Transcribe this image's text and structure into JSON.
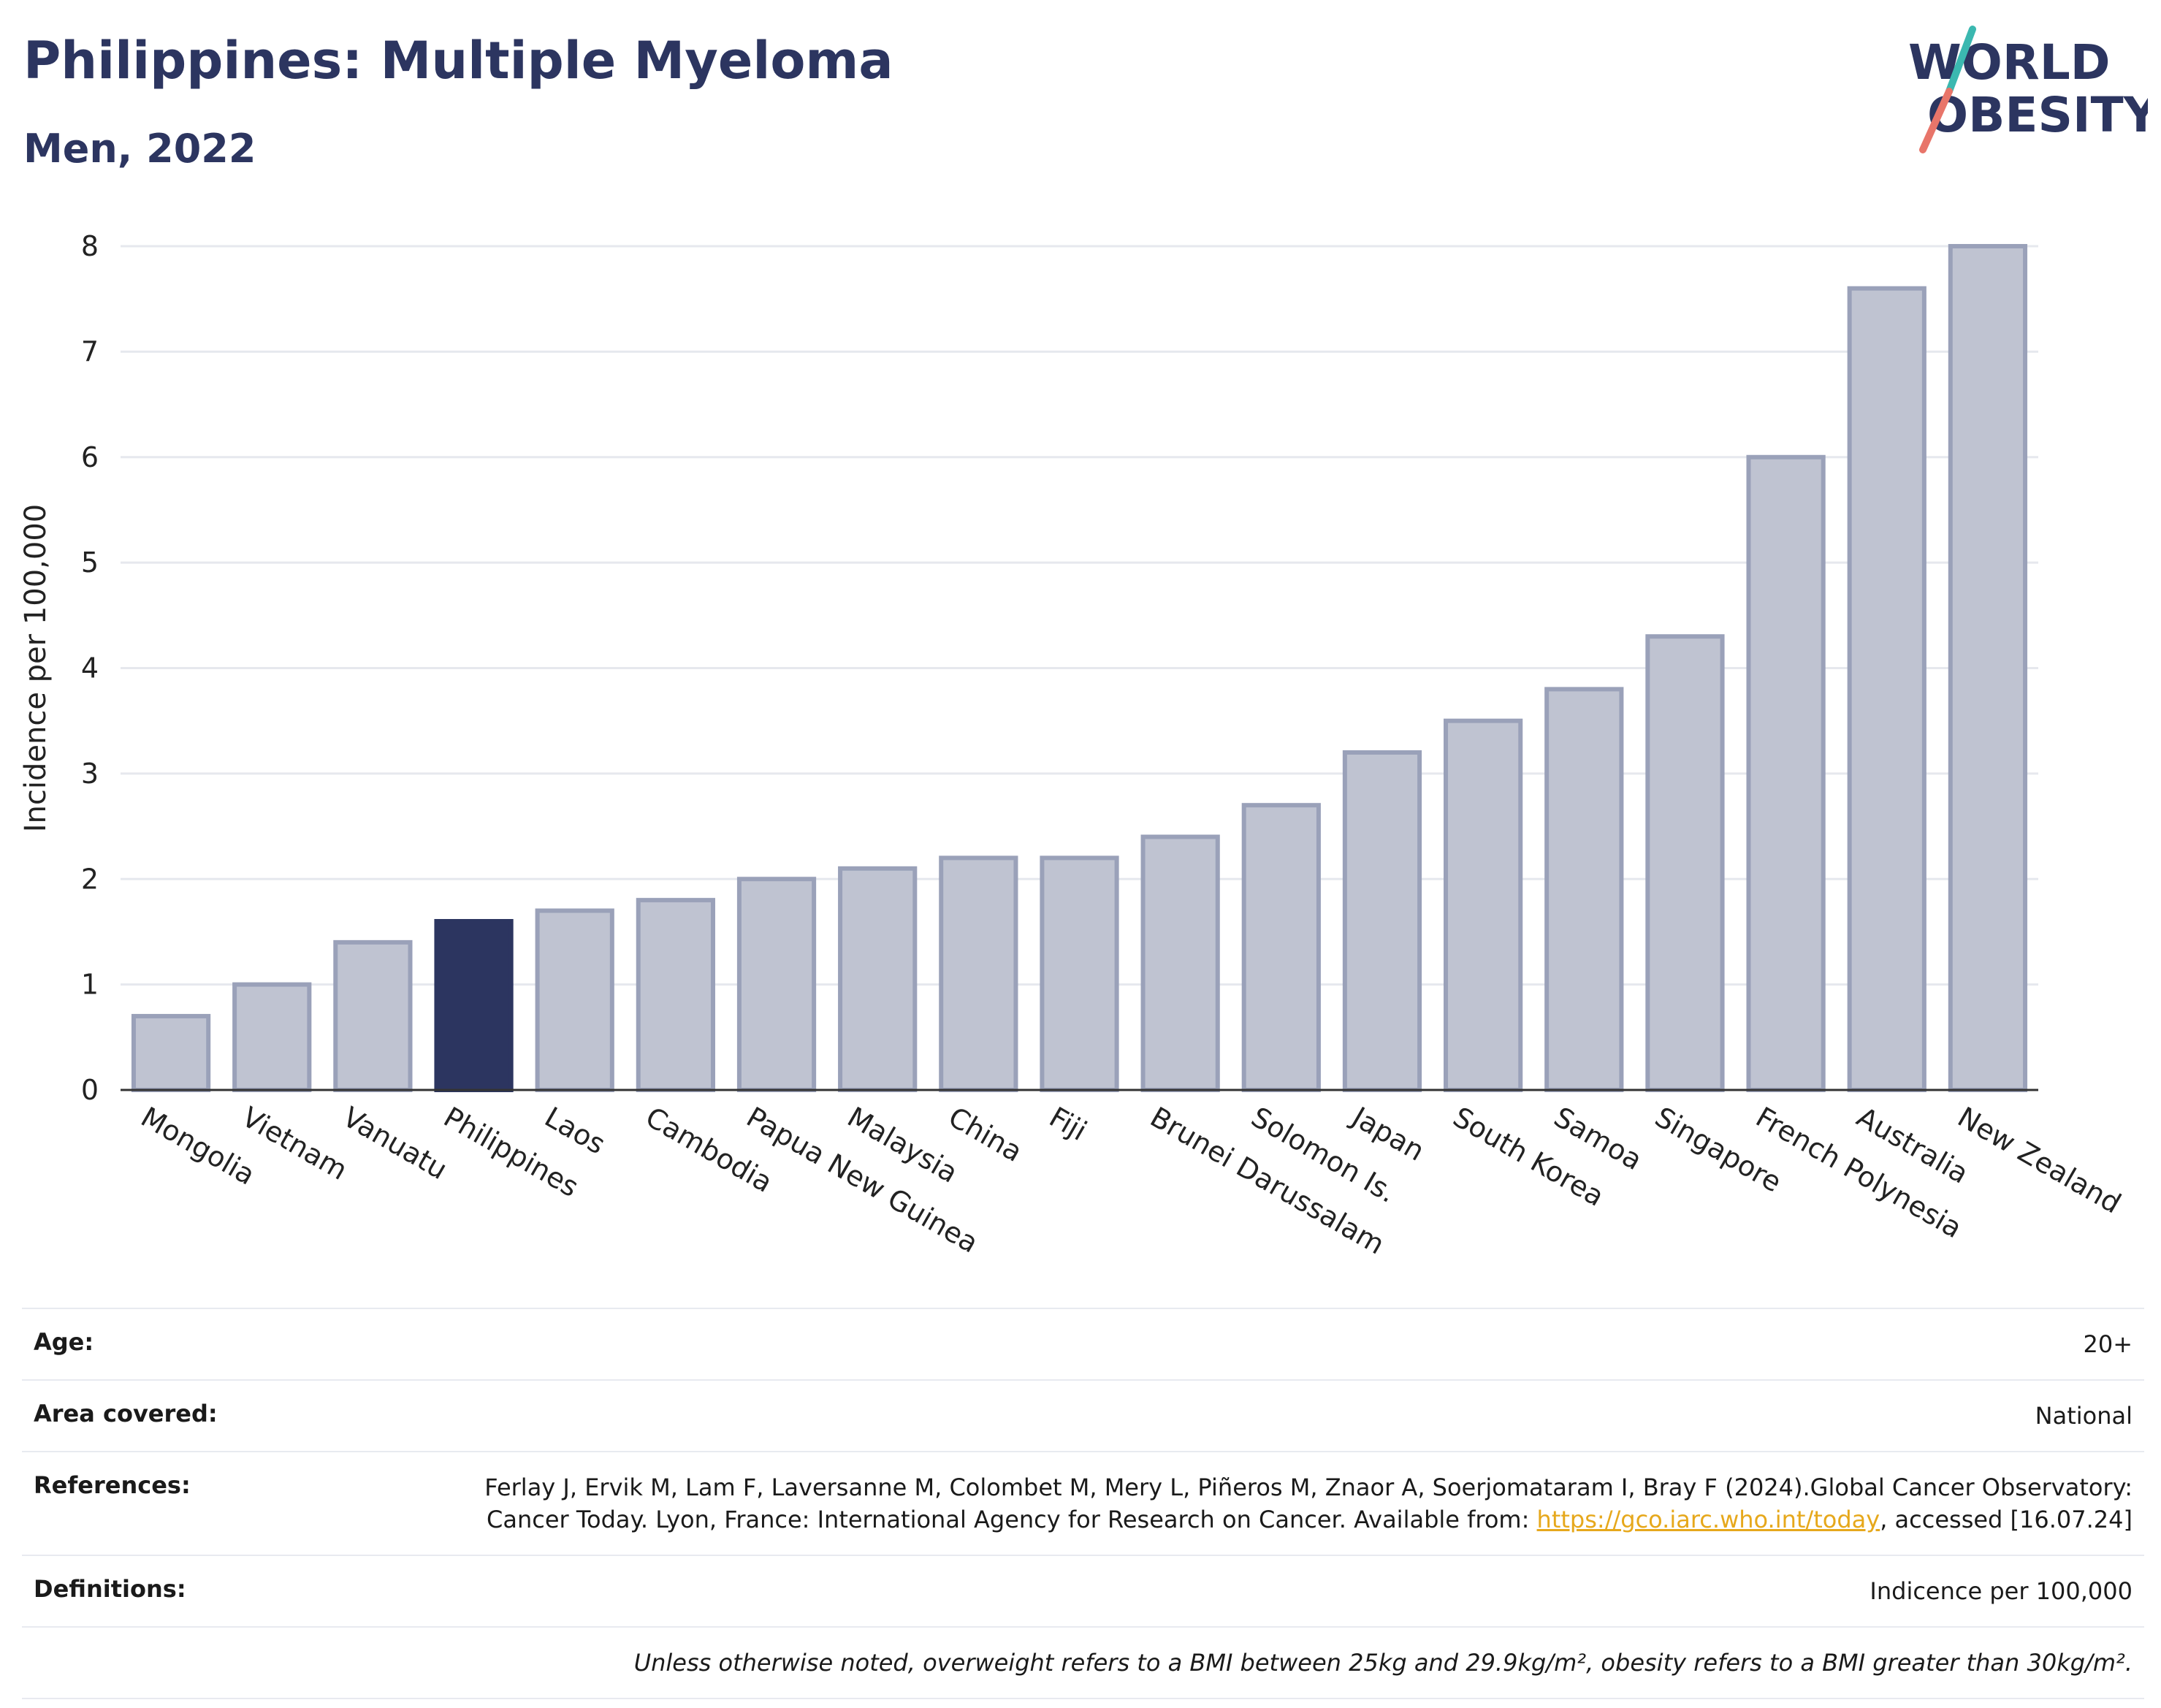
{
  "header": {
    "title": "Philippines: Multiple Myeloma",
    "subtitle": "Men, 2022",
    "logo_line1": "WORLD",
    "logo_line2": "OBESITY"
  },
  "colors": {
    "bar": "#bfc3d1",
    "bar_stroke": "#9aa1b9",
    "highlight": "#2c3560",
    "title": "#2c3560",
    "link": "#e6a81c",
    "logo_slash_teal": "#3bb8b0",
    "logo_slash_coral": "#e8756a"
  },
  "chart_data": {
    "type": "bar",
    "ylabel": "Incidence per 100,000",
    "ylim": [
      0,
      8
    ],
    "yticks": [
      "0",
      "1",
      "2",
      "3",
      "4",
      "5",
      "6",
      "7",
      "8"
    ],
    "grid": true,
    "highlight": "Philippines",
    "categories": [
      "Mongolia",
      "Vietnam",
      "Vanuatu",
      "Philippines",
      "Laos",
      "Cambodia",
      "Papua New Guinea",
      "Malaysia",
      "China",
      "Fiji",
      "Brunei Darussalam",
      "Solomon Is.",
      "Japan",
      "South Korea",
      "Samoa",
      "Singapore",
      "French Polynesia",
      "Australia",
      "New Zealand"
    ],
    "values": [
      0.7,
      1.0,
      1.4,
      1.6,
      1.7,
      1.8,
      2.0,
      2.1,
      2.2,
      2.2,
      2.4,
      2.7,
      3.2,
      3.5,
      3.8,
      4.3,
      6.0,
      7.6,
      8.0
    ]
  },
  "info": {
    "age_label": "Age:",
    "age_value": "20+",
    "area_label": "Area covered:",
    "area_value": "National",
    "references_label": "References:",
    "references_text": "Ferlay J, Ervik M, Lam F, Laversanne M, Colombet M, Mery L, Piñeros M, Znaor A, Soerjomataram I, Bray F (2024).Global Cancer Observatory: Cancer Today. Lyon, France: International Agency for Research on Cancer. Available from:",
    "references_link": "https://gco.iarc.who.int/today",
    "references_suffix": ", accessed [16.07.24]",
    "definitions_label": "Definitions:",
    "definitions_value": "Indicence per 100,000",
    "footnote": "Unless otherwise noted, overweight refers to a BMI between 25kg and 29.9kg/m², obesity refers to a BMI greater than 30kg/m²."
  }
}
